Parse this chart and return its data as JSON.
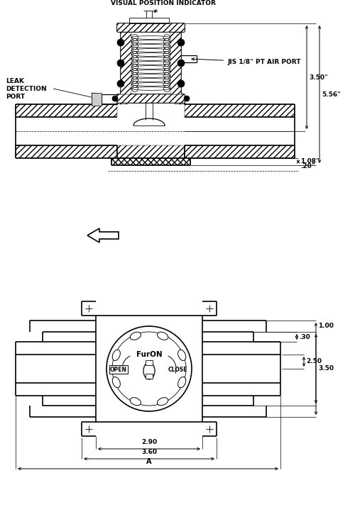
{
  "bg_color": "#ffffff",
  "line_color": "#000000",
  "annotations": {
    "visual_position_indicator": "VISUAL POSITION INDICATOR",
    "jis_air_port": "JIS 1/8\" PT AIR PORT",
    "leak_detection": "LEAK\nDETECTION\nPORT",
    "dim_556": "5.56\"",
    "dim_350_top": "3.50\"",
    "dim_108": "1.08\"",
    "dim_020": ".20\"",
    "dim_250": "2.50",
    "dim_350_bot": "3.50",
    "dim_030": ".30",
    "dim_100": "1.00",
    "dim_290": "2.90",
    "dim_360": "3.60",
    "dim_A": "A",
    "open_label": "OPEN",
    "close_label": "CLOSE",
    "furon_label": "FurON"
  },
  "fig_width": 5.0,
  "fig_height": 7.15,
  "dpi": 100
}
